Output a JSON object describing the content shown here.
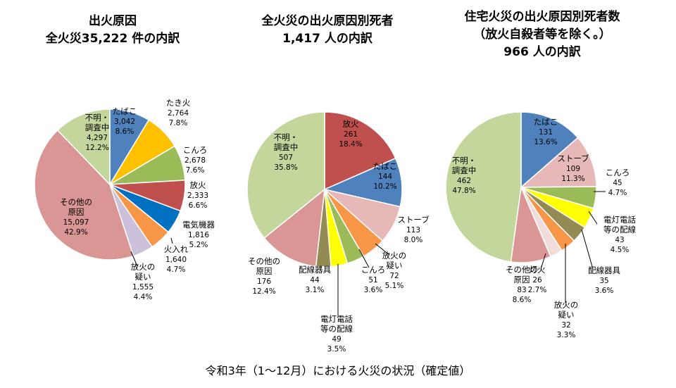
{
  "footnote": "令和3年（1～12月）における火災の状況（確定値）",
  "chart_data": [
    {
      "type": "pie",
      "title": "出火原因\n全火災35,222 件の内訳",
      "slices": [
        {
          "name": "たばこ",
          "value": 3042,
          "pct": "8.6%",
          "color": "#4f81bd"
        },
        {
          "name": "たき火",
          "value": 2764,
          "pct": "7.8%",
          "color": "#ffc000"
        },
        {
          "name": "こんろ",
          "value": 2678,
          "pct": "7.6%",
          "color": "#9bbb59"
        },
        {
          "name": "放火",
          "value": 2333,
          "pct": "6.6%",
          "color": "#c0504d"
        },
        {
          "name": "電気機器",
          "value": 1816,
          "pct": "5.2%",
          "color": "#0070c0"
        },
        {
          "name": "火入れ",
          "value": 1640,
          "pct": "4.7%",
          "color": "#f79646"
        },
        {
          "name": "放火の疑い",
          "value": 1555,
          "pct": "4.4%",
          "color": "#ccc0da"
        },
        {
          "name": "その他の原因",
          "value": 15097,
          "pct": "42.9%",
          "color": "#d99694"
        },
        {
          "name": "不明・調査中",
          "value": 4297,
          "pct": "12.2%",
          "color": "#c3d69b"
        }
      ]
    },
    {
      "type": "pie",
      "title": "全火災の出火原因別死者\n1,417 人の内訳",
      "slices": [
        {
          "name": "放火",
          "value": 261,
          "pct": "18.4%",
          "color": "#c0504d"
        },
        {
          "name": "たばこ",
          "value": 144,
          "pct": "10.2%",
          "color": "#4f81bd"
        },
        {
          "name": "ストーブ",
          "value": 113,
          "pct": "8.0%",
          "color": "#e6b9b8"
        },
        {
          "name": "放火の疑い",
          "value": 72,
          "pct": "5.1%",
          "color": "#f79646"
        },
        {
          "name": "こんろ",
          "value": 51,
          "pct": "3.6%",
          "color": "#9bbb59"
        },
        {
          "name": "電灯電話等の配線",
          "value": 49,
          "pct": "3.5%",
          "color": "#ffff00"
        },
        {
          "name": "配線器具",
          "value": 44,
          "pct": "3.1%",
          "color": "#948a54"
        },
        {
          "name": "その他の原因",
          "value": 176,
          "pct": "12.4%",
          "color": "#d99694"
        },
        {
          "name": "不明・調査中",
          "value": 507,
          "pct": "35.8%",
          "color": "#c3d69b"
        }
      ]
    },
    {
      "type": "pie",
      "title": "住宅火災の出火原因別死者数\n（放火自殺者等を除く。）\n966 人の内訳",
      "slices": [
        {
          "name": "たばこ",
          "value": 131,
          "pct": "13.6%",
          "color": "#4f81bd"
        },
        {
          "name": "ストーブ",
          "value": 109,
          "pct": "11.3%",
          "color": "#e6b9b8"
        },
        {
          "name": "こんろ",
          "value": 45,
          "pct": "4.7%",
          "color": "#9bbb59"
        },
        {
          "name": "電灯電話等の配線",
          "value": 43,
          "pct": "4.5%",
          "color": "#ffff00"
        },
        {
          "name": "配線器具",
          "value": 35,
          "pct": "3.6%",
          "color": "#948a54"
        },
        {
          "name": "放火の疑い",
          "value": 32,
          "pct": "3.3%",
          "color": "#f79646"
        },
        {
          "name": "灯火",
          "value": 26,
          "pct": "2.7%",
          "color": "#f2dcdb"
        },
        {
          "name": "その他の原因",
          "value": 83,
          "pct": "8.6%",
          "color": "#d99694"
        },
        {
          "name": "不明・調査中",
          "value": 462,
          "pct": "47.8%",
          "color": "#c3d69b"
        }
      ]
    }
  ]
}
